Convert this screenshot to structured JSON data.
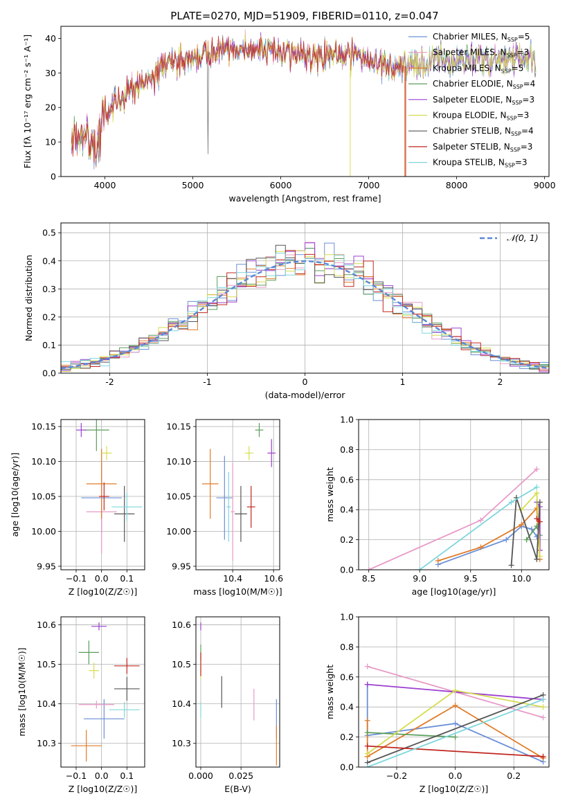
{
  "figure_title": "PLATE=0270, MJD=51909, FIBERID=0110, z=0.047",
  "colors": [
    "#6a8fd8",
    "#e89ac8",
    "#e07b28",
    "#5a9e5a",
    "#9b3fcf",
    "#d6dc4e",
    "#555555",
    "#c0261f",
    "#7fd6dc"
  ],
  "chart_data": [
    {
      "id": "spectrum",
      "type": "line",
      "title": "PLATE=0270, MJD=51909, FIBERID=0110, z=0.047",
      "xlabel": "wavelength [Angstrom, rest frame]",
      "ylabel": "Flux [fλ 10⁻¹⁷ erg cm⁻² s⁻¹ A⁻¹]",
      "xlim": [
        3500,
        9050
      ],
      "ylim": [
        0,
        43.5
      ],
      "xticks": [
        4000,
        5000,
        6000,
        7000,
        8000,
        9000
      ],
      "yticks": [
        0,
        10,
        20,
        30,
        40
      ],
      "grid": false,
      "legend": "right",
      "envelope": {
        "x": [
          3620,
          3700,
          3800,
          3900,
          4000,
          4100,
          4200,
          4300,
          4400,
          4500,
          4600,
          4800,
          5000,
          5200,
          5400,
          5600,
          5800,
          6000,
          6200,
          6400,
          6600,
          6800,
          7000,
          7200,
          7400,
          7600,
          7800,
          8000,
          8200,
          8400,
          8600,
          8800,
          8900
        ],
        "y": [
          9,
          12,
          13,
          11,
          18,
          21,
          22,
          26,
          27,
          29,
          31,
          33,
          35,
          36,
          37,
          37,
          36,
          36,
          36,
          35,
          35,
          35,
          34,
          32,
          32,
          33,
          34,
          34,
          34,
          34,
          34,
          34,
          34
        ]
      },
      "series": [
        {
          "name": "Chabrier MILES",
          "nssp": "5"
        },
        {
          "name": "Salpeter MILES",
          "nssp": "3"
        },
        {
          "name": "Kroupa MILES",
          "nssp": "5"
        },
        {
          "name": "Chabrier ELODIE",
          "nssp": "4"
        },
        {
          "name": "Salpeter ELODIE",
          "nssp": "3"
        },
        {
          "name": "Kroupa ELODIE",
          "nssp": "3"
        },
        {
          "name": "Chabrier STELIB",
          "nssp": "4"
        },
        {
          "name": "Salpeter STELIB",
          "nssp": "3"
        },
        {
          "name": "Kroupa STELIB",
          "nssp": "3"
        }
      ]
    },
    {
      "id": "residuals",
      "type": "line",
      "xlabel": "(data-model)/error",
      "ylabel": "Normed distribution",
      "xlim": [
        -2.5,
        2.5
      ],
      "ylim": [
        0,
        0.535
      ],
      "xticks": [
        -2,
        -1,
        0,
        1,
        2
      ],
      "yticks": [
        0.0,
        0.1,
        0.2,
        0.3,
        0.4,
        0.5
      ],
      "grid": true,
      "legend": "top-right",
      "legend_label": "N(0,1)",
      "bin_width": 0.1,
      "bin_start": -2.5
    },
    {
      "id": "age-vs-Z",
      "type": "scatter",
      "xlabel": "Z [log10(Z/Z☉)]",
      "ylabel": "age  [log10(age/yr)]",
      "xlim": [
        -0.16,
        0.17
      ],
      "ylim": [
        9.945,
        10.16
      ],
      "xticks": [
        -0.1,
        0.0,
        0.1
      ],
      "yticks": [
        9.95,
        10.0,
        10.05,
        10.1,
        10.15
      ],
      "grid": true,
      "points": [
        {
          "x": 0.0,
          "xerr": 0.08,
          "y": 10.048,
          "yerr": 0.05
        },
        {
          "x": 0.0,
          "xerr": 0.06,
          "y": 10.028,
          "yerr": 0.06
        },
        {
          "x": 0.0,
          "xerr": 0.06,
          "y": 10.068,
          "yerr": 0.05
        },
        {
          "x": -0.02,
          "xerr": 0.05,
          "y": 10.145,
          "yerr": 0.03
        },
        {
          "x": -0.08,
          "xerr": 0.02,
          "y": 10.145,
          "yerr": 0.01
        },
        {
          "x": 0.02,
          "xerr": 0.02,
          "y": 10.112,
          "yerr": 0.01
        },
        {
          "x": 0.09,
          "xerr": 0.04,
          "y": 10.025,
          "yerr": 0.04
        },
        {
          "x": 0.01,
          "xerr": 0.02,
          "y": 10.05,
          "yerr": 0.02
        },
        {
          "x": 0.1,
          "xerr": 0.06,
          "y": 10.035,
          "yerr": 0.02
        }
      ]
    },
    {
      "id": "age-vs-mass",
      "type": "scatter",
      "xlabel": "mass [log10(M/M☉)]",
      "xlim": [
        10.22,
        10.63
      ],
      "ylim": [
        9.945,
        10.16
      ],
      "xticks": [
        10.4,
        10.6
      ],
      "yticks": [
        9.95,
        10.0,
        10.05,
        10.1,
        10.15
      ],
      "grid": true,
      "points": [
        {
          "x": 10.36,
          "xerr": 0.04,
          "y": 10.048,
          "yerr": 0.06
        },
        {
          "x": 10.4,
          "xerr": 0.01,
          "y": 10.028,
          "yerr": 0.07
        },
        {
          "x": 10.29,
          "xerr": 0.04,
          "y": 10.068,
          "yerr": 0.05
        },
        {
          "x": 10.53,
          "xerr": 0.02,
          "y": 10.145,
          "yerr": 0.01
        },
        {
          "x": 10.59,
          "xerr": 0.02,
          "y": 10.112,
          "yerr": 0.02
        },
        {
          "x": 10.48,
          "xerr": 0.02,
          "y": 10.112,
          "yerr": 0.01
        },
        {
          "x": 10.44,
          "xerr": 0.03,
          "y": 10.025,
          "yerr": 0.04
        },
        {
          "x": 10.49,
          "xerr": 0.02,
          "y": 10.035,
          "yerr": 0.03
        },
        {
          "x": 10.38,
          "xerr": 0.01,
          "y": 10.035,
          "yerr": 0.05
        }
      ]
    },
    {
      "id": "weight-vs-age",
      "type": "line",
      "xlabel": "age  [log10(age/yr)]",
      "ylabel": "mass weight",
      "xlim": [
        8.4,
        10.27
      ],
      "ylim": [
        0,
        1.0
      ],
      "xticks": [
        8.5,
        9.0,
        9.5,
        10.0
      ],
      "yticks": [
        0.0,
        0.2,
        0.4,
        0.6,
        0.8,
        1.0
      ],
      "grid": true,
      "series": [
        {
          "x": [
            9.18,
            9.85,
            10.0,
            10.1,
            10.15
          ],
          "y": [
            0.035,
            0.2,
            0.29,
            0.27,
            0.22
          ]
        },
        {
          "x": [
            8.5,
            9.6,
            10.15
          ],
          "y": [
            0.0,
            0.33,
            0.67
          ]
        },
        {
          "x": [
            9.18,
            9.6,
            10.0,
            10.15,
            10.18
          ],
          "y": [
            0.06,
            0.15,
            0.3,
            0.41,
            0.07
          ]
        },
        {
          "x": [
            10.05,
            10.15,
            10.18
          ],
          "y": [
            0.2,
            0.29,
            0.23
          ]
        },
        {
          "x": [
            10.15,
            10.18,
            10.18
          ],
          "y": [
            0.45,
            0.42,
            0.13
          ]
        },
        {
          "x": [
            10.0,
            10.15,
            10.18
          ],
          "y": [
            0.4,
            0.51,
            0.09
          ]
        },
        {
          "x": [
            9.9,
            9.95,
            10.15,
            10.18
          ],
          "y": [
            0.03,
            0.48,
            0.07,
            0.45
          ]
        },
        {
          "x": [
            10.15,
            10.18
          ],
          "y": [
            0.34,
            0.32
          ]
        },
        {
          "x": [
            9.0,
            9.9,
            10.15
          ],
          "y": [
            0.0,
            0.45,
            0.55
          ]
        }
      ]
    },
    {
      "id": "mass-vs-Z",
      "type": "scatter",
      "xlabel": "Z [log10(Z/Z☉)]",
      "ylabel": "mass [log10(M/M☉)]",
      "xlim": [
        -0.16,
        0.17
      ],
      "ylim": [
        10.24,
        10.62
      ],
      "xticks": [
        -0.1,
        0.0,
        0.1
      ],
      "yticks": [
        10.3,
        10.4,
        10.5,
        10.6
      ],
      "grid": true,
      "points": [
        {
          "x": 0.01,
          "xerr": 0.08,
          "y": 10.362,
          "yerr": 0.05
        },
        {
          "x": -0.02,
          "xerr": 0.07,
          "y": 10.398,
          "yerr": 0.01
        },
        {
          "x": -0.06,
          "xerr": 0.06,
          "y": 10.294,
          "yerr": 0.04
        },
        {
          "x": -0.05,
          "xerr": 0.04,
          "y": 10.53,
          "yerr": 0.03
        },
        {
          "x": -0.01,
          "xerr": 0.03,
          "y": 10.596,
          "yerr": 0.01
        },
        {
          "x": -0.03,
          "xerr": 0.02,
          "y": 10.484,
          "yerr": 0.02
        },
        {
          "x": 0.1,
          "xerr": 0.05,
          "y": 10.438,
          "yerr": 0.03
        },
        {
          "x": 0.1,
          "xerr": 0.05,
          "y": 10.496,
          "yerr": 0.02
        },
        {
          "x": 0.09,
          "xerr": 0.06,
          "y": 10.385,
          "yerr": 0.02
        }
      ]
    },
    {
      "id": "mass-vs-ebv",
      "type": "scatter",
      "xlabel": "E(B-V)",
      "xlim": [
        -0.003,
        0.049
      ],
      "ylim": [
        10.24,
        10.62
      ],
      "xticks": [
        0.0,
        0.025
      ],
      "yticks": [
        10.3,
        10.4,
        10.5,
        10.6
      ],
      "grid": true,
      "points": [
        {
          "x": 0.047,
          "xerr": 0,
          "y": 10.362,
          "yerr": 0.05
        },
        {
          "x": 0.033,
          "xerr": 0,
          "y": 10.398,
          "yerr": 0.04
        },
        {
          "x": 0.047,
          "xerr": 0,
          "y": 10.294,
          "yerr": 0.05
        },
        {
          "x": 0.0,
          "xerr": 0,
          "y": 10.53,
          "yerr": 0.02
        },
        {
          "x": 0.0,
          "xerr": 0,
          "y": 10.596,
          "yerr": 0.01
        },
        {
          "x": 0.0,
          "xerr": 0,
          "y": 10.484,
          "yerr": 0.02
        },
        {
          "x": 0.013,
          "xerr": 0,
          "y": 10.43,
          "yerr": 0.04
        },
        {
          "x": 0.0,
          "xerr": 0,
          "y": 10.5,
          "yerr": 0.03
        },
        {
          "x": 0.0,
          "xerr": 0,
          "y": 10.385,
          "yerr": 0.02
        }
      ]
    },
    {
      "id": "weight-vs-Z",
      "type": "line",
      "xlabel": "Z [log10(Z/Z☉)]",
      "ylabel": "mass weight",
      "xlim": [
        -0.33,
        0.32
      ],
      "ylim": [
        0,
        1.0
      ],
      "xticks": [
        -0.2,
        0.0,
        0.2
      ],
      "yticks": [
        0.0,
        0.2,
        0.4,
        0.6,
        0.8,
        1.0
      ],
      "grid": true,
      "series": [
        {
          "x": [
            -0.3,
            -0.3,
            0.0,
            0.3
          ],
          "y": [
            0.55,
            0.21,
            0.29,
            0.035
          ]
        },
        {
          "x": [
            -0.3,
            0.0,
            0.3
          ],
          "y": [
            0.67,
            0.5,
            0.33
          ]
        },
        {
          "x": [
            -0.3,
            -0.3,
            0.0,
            0.3
          ],
          "y": [
            0.31,
            0.07,
            0.41,
            0.06
          ]
        },
        {
          "x": [
            -0.3,
            0.0
          ],
          "y": [
            0.23,
            0.2
          ]
        },
        {
          "x": [
            -0.3,
            0.3
          ],
          "y": [
            0.55,
            0.45
          ]
        },
        {
          "x": [
            -0.3,
            0.0,
            0.3
          ],
          "y": [
            0.09,
            0.51,
            0.4
          ]
        },
        {
          "x": [
            -0.3,
            0.3
          ],
          "y": [
            0.03,
            0.48
          ]
        },
        {
          "x": [
            -0.3,
            0.3
          ],
          "y": [
            0.14,
            0.07
          ]
        },
        {
          "x": [
            -0.3,
            0.3
          ],
          "y": [
            0.0,
            0.45
          ]
        }
      ]
    }
  ]
}
